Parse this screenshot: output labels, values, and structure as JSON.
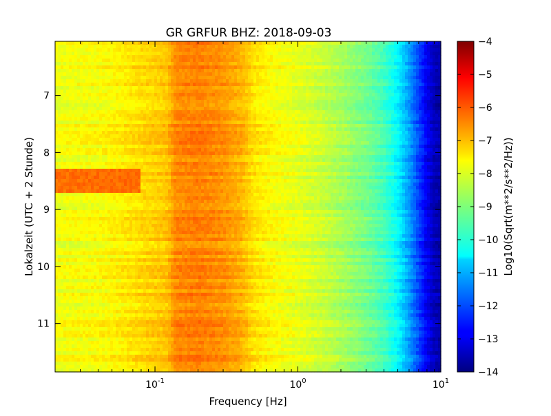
{
  "chart_data": {
    "type": "heatmap",
    "title": "GR GRFUR BHZ: 2018-09-03",
    "xlabel": "Frequency [Hz]",
    "ylabel": "Lokalzeit (UTC + 2 Stunde)",
    "x_scale": "log",
    "xlim": [
      0.02,
      10
    ],
    "x_ticks": [
      {
        "value": 0.1,
        "base": "10",
        "exp": "-1"
      },
      {
        "value": 1,
        "base": "10",
        "exp": "0"
      },
      {
        "value": 10,
        "base": "10",
        "exp": "1"
      }
    ],
    "ylim": [
      6.05,
      11.85
    ],
    "y_inverted": true,
    "y_ticks": [
      {
        "value": 7,
        "label": "7"
      },
      {
        "value": 8,
        "label": "8"
      },
      {
        "value": 9,
        "label": "9"
      },
      {
        "value": 10,
        "label": "10"
      },
      {
        "value": 11,
        "label": "11"
      }
    ],
    "colorbar": {
      "label": "Log10(Sqrt(m**2/s**2/Hz))",
      "min": -14,
      "max": -4,
      "colormap": "jet",
      "ticks": [
        {
          "value": -4,
          "label": "−4"
        },
        {
          "value": -5,
          "label": "−5"
        },
        {
          "value": -6,
          "label": "−6"
        },
        {
          "value": -7,
          "label": "−7"
        },
        {
          "value": -8,
          "label": "−8"
        },
        {
          "value": -9,
          "label": "−9"
        },
        {
          "value": -10,
          "label": "−10"
        },
        {
          "value": -11,
          "label": "−11"
        },
        {
          "value": -12,
          "label": "−12"
        },
        {
          "value": -13,
          "label": "−13"
        },
        {
          "value": -14,
          "label": "−14"
        }
      ]
    },
    "spectrum_profile": {
      "frequency_hz": [
        0.02,
        0.04,
        0.06,
        0.08,
        0.1,
        0.12,
        0.14,
        0.2,
        0.3,
        0.4,
        0.5,
        0.7,
        1.0,
        1.5,
        2.0,
        3.0,
        4.0,
        5.0,
        6.0,
        7.0,
        8.0,
        9.0,
        10.0
      ],
      "level": [
        -7.9,
        -7.8,
        -7.6,
        -7.4,
        -7.3,
        -7.2,
        -6.6,
        -6.5,
        -6.7,
        -7.0,
        -7.5,
        -7.8,
        -8.0,
        -8.3,
        -8.6,
        -9.1,
        -9.6,
        -10.3,
        -11.2,
        -12.1,
        -12.9,
        -13.4,
        -13.6
      ]
    },
    "features": [
      {
        "name": "low-frequency peak",
        "time_start": 8.28,
        "time_end": 8.72,
        "freq_min_hz": 0.02,
        "freq_max_hz": 0.08,
        "level": -6.3
      }
    ]
  }
}
